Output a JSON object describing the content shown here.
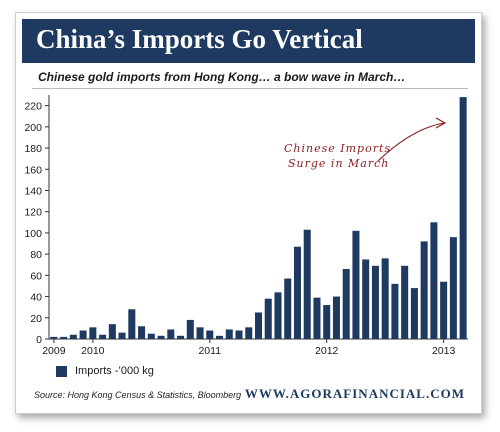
{
  "banner": {
    "title": "China’s Imports Go Vertical"
  },
  "subtitle": "Chinese gold imports from Hong Kong… a bow wave in March…",
  "legend": {
    "label": "Imports -’000 kg"
  },
  "footer": {
    "source": "Source: Hong Kong Census & Statistics, Bloomberg",
    "site": "WWW.AGORAFINANCIAL.COM"
  },
  "annotation": {
    "line1": "Chinese Imports",
    "line2": "Surge in March"
  },
  "colors": {
    "bar": "#1f3a60",
    "banner": "#1f3a60",
    "annotation": "#8b1e1e",
    "site": "#1f3a60"
  },
  "chart_data": {
    "type": "bar",
    "title": "China’s Imports Go Vertical",
    "subtitle": "Chinese gold imports from Hong Kong… a bow wave in March…",
    "ylim": [
      0,
      230
    ],
    "yticks": [
      0,
      20,
      40,
      60,
      80,
      100,
      120,
      140,
      160,
      180,
      200,
      220
    ],
    "xtick_labels": [
      {
        "label": "2009",
        "bar_index": 0
      },
      {
        "label": "2010",
        "bar_index": 4
      },
      {
        "label": "2011",
        "bar_index": 16
      },
      {
        "label": "2012",
        "bar_index": 28
      },
      {
        "label": "2013",
        "bar_index": 40
      }
    ],
    "grid": false,
    "legend_position": "bottom-left",
    "series": [
      {
        "name": "Imports -’000 kg",
        "values": [
          2,
          2,
          4,
          8,
          11,
          4,
          14,
          6,
          28,
          12,
          5,
          3,
          9,
          3,
          18,
          11,
          8,
          3,
          9,
          8,
          11,
          25,
          38,
          44,
          57,
          87,
          103,
          39,
          32,
          40,
          66,
          102,
          75,
          69,
          76,
          52,
          69,
          48,
          92,
          110,
          54,
          96,
          228
        ]
      }
    ]
  }
}
